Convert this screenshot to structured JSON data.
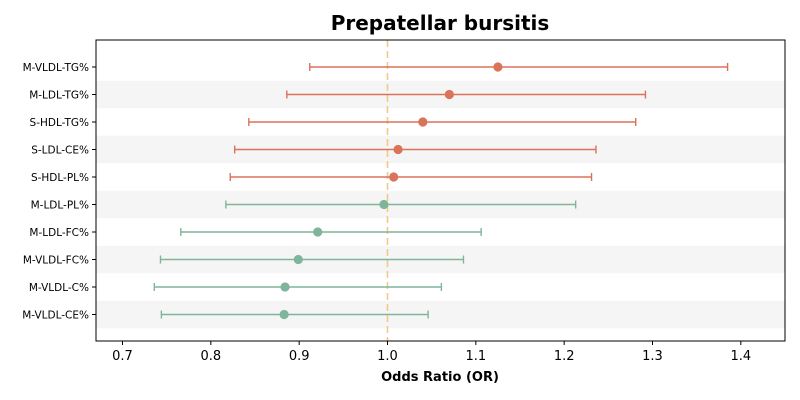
{
  "chart_data": {
    "type": "forest",
    "title": "Prepatellar bursitis",
    "xlabel": "Odds Ratio (OR)",
    "xlim": [
      0.67,
      1.45
    ],
    "xticks": [
      0.7,
      0.8,
      0.9,
      1.0,
      1.1,
      1.2,
      1.3,
      1.4
    ],
    "xtick_labels": [
      "0.7",
      "0.8",
      "0.9",
      "1.0",
      "1.1",
      "1.2",
      "1.3",
      "1.4"
    ],
    "reference_line": 1.0,
    "colors": {
      "risk": "#d9735a",
      "protective": "#7fb59a",
      "reference": "#f2c98a",
      "band": "#f5f5f5"
    },
    "rows": [
      {
        "label": "M-VLDL-TG%",
        "or": 1.125,
        "lower": 0.912,
        "upper": 1.385,
        "group": "risk"
      },
      {
        "label": "M-LDL-TG%",
        "or": 1.07,
        "lower": 0.886,
        "upper": 1.292,
        "group": "risk"
      },
      {
        "label": "S-HDL-TG%",
        "or": 1.04,
        "lower": 0.843,
        "upper": 1.281,
        "group": "risk"
      },
      {
        "label": "S-LDL-CE%",
        "or": 1.012,
        "lower": 0.827,
        "upper": 1.236,
        "group": "risk"
      },
      {
        "label": "S-HDL-PL%",
        "or": 1.007,
        "lower": 0.822,
        "upper": 1.231,
        "group": "risk"
      },
      {
        "label": "M-LDL-PL%",
        "or": 0.996,
        "lower": 0.817,
        "upper": 1.213,
        "group": "protective"
      },
      {
        "label": "M-LDL-FC%",
        "or": 0.921,
        "lower": 0.766,
        "upper": 1.106,
        "group": "protective"
      },
      {
        "label": "M-VLDL-FC%",
        "or": 0.899,
        "lower": 0.743,
        "upper": 1.086,
        "group": "protective"
      },
      {
        "label": "M-VLDL-C%",
        "or": 0.884,
        "lower": 0.736,
        "upper": 1.061,
        "group": "protective"
      },
      {
        "label": "M-VLDL-CE%",
        "or": 0.883,
        "lower": 0.744,
        "upper": 1.046,
        "group": "protective"
      }
    ]
  }
}
